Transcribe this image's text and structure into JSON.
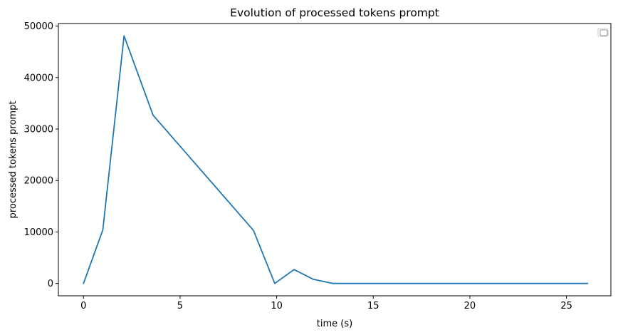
{
  "chart_data": {
    "type": "line",
    "title": "Evolution of processed tokens prompt",
    "xlabel": "time (s)",
    "ylabel": "processed tokens prompt",
    "xlim": [
      -1.3,
      27.3
    ],
    "ylim": [
      -2400,
      50500
    ],
    "x_ticks": [
      0,
      5,
      10,
      15,
      20,
      25
    ],
    "y_ticks": [
      0,
      10000,
      20000,
      30000,
      40000,
      50000
    ],
    "grid": false,
    "legend": "top-right (empty)",
    "series": [
      {
        "color": "#1f77b4",
        "x": [
          0,
          1.0,
          2.1,
          3.6,
          8.8,
          9.9,
          10.9,
          11.9,
          12.9,
          14,
          16,
          18,
          20,
          22,
          24,
          26.1
        ],
        "y": [
          0,
          10400,
          48100,
          32700,
          10300,
          0,
          2700,
          800,
          0,
          0,
          0,
          0,
          0,
          0,
          0,
          0
        ]
      }
    ]
  }
}
